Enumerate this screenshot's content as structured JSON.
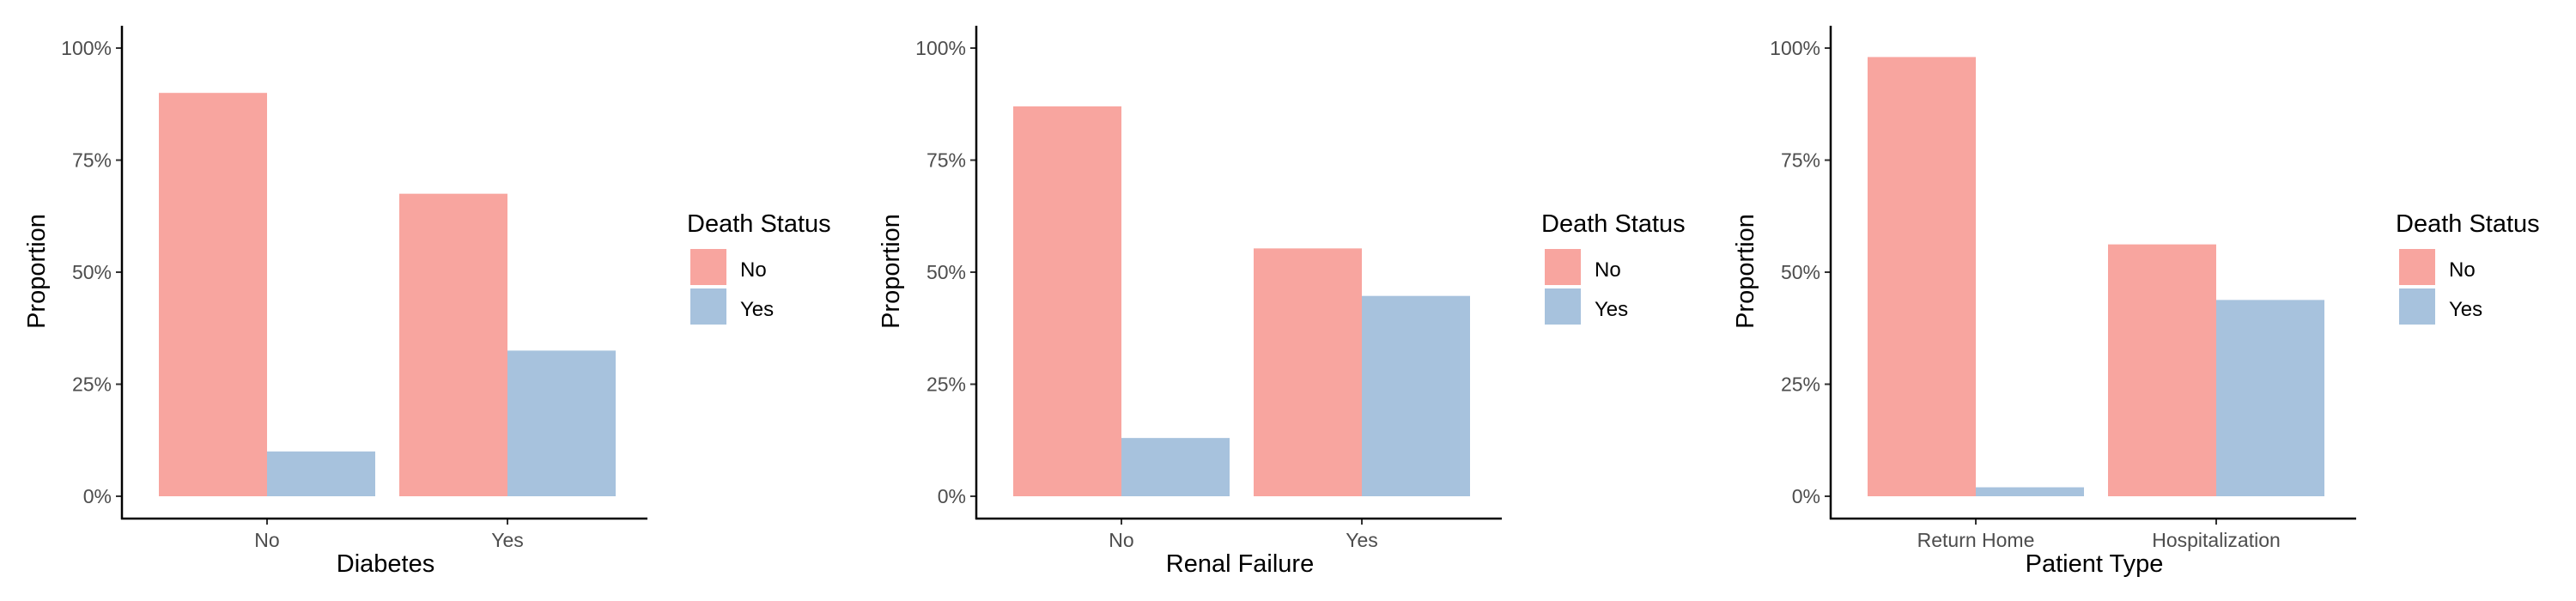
{
  "colors": {
    "no": "#F8A59F",
    "yes": "#A7C2DD",
    "axis": "#000000",
    "tick_text": "#4D4D4D"
  },
  "chart_data": [
    {
      "type": "bar",
      "xlabel": "Diabetes",
      "ylabel": "Proportion",
      "categories": [
        "No",
        "Yes"
      ],
      "ylim": [
        0,
        1
      ],
      "yticks": [
        0,
        0.25,
        0.5,
        0.75,
        1
      ],
      "ytick_labels": [
        "0%",
        "25%",
        "50%",
        "75%",
        "100%"
      ],
      "grid": false,
      "legend": {
        "title": "Death Status",
        "position": "right",
        "entries": [
          "No",
          "Yes"
        ]
      },
      "series": [
        {
          "name": "No",
          "color": "#F8A59F",
          "values": [
            0.9,
            0.675
          ]
        },
        {
          "name": "Yes",
          "color": "#A7C2DD",
          "values": [
            0.1,
            0.325
          ]
        }
      ]
    },
    {
      "type": "bar",
      "xlabel": "Renal Failure",
      "ylabel": "Proportion",
      "categories": [
        "No",
        "Yes"
      ],
      "ylim": [
        0,
        1
      ],
      "yticks": [
        0,
        0.25,
        0.5,
        0.75,
        1
      ],
      "ytick_labels": [
        "0%",
        "25%",
        "50%",
        "75%",
        "100%"
      ],
      "grid": false,
      "legend": {
        "title": "Death Status",
        "position": "right",
        "entries": [
          "No",
          "Yes"
        ]
      },
      "series": [
        {
          "name": "No",
          "color": "#F8A59F",
          "values": [
            0.87,
            0.553
          ]
        },
        {
          "name": "Yes",
          "color": "#A7C2DD",
          "values": [
            0.13,
            0.447
          ]
        }
      ]
    },
    {
      "type": "bar",
      "xlabel": "Patient Type",
      "ylabel": "Proportion",
      "categories": [
        "Return Home",
        "Hospitalization"
      ],
      "ylim": [
        0,
        1
      ],
      "yticks": [
        0,
        0.25,
        0.5,
        0.75,
        1
      ],
      "ytick_labels": [
        "0%",
        "25%",
        "50%",
        "75%",
        "100%"
      ],
      "grid": false,
      "legend": {
        "title": "Death Status",
        "position": "right",
        "entries": [
          "No",
          "Yes"
        ]
      },
      "series": [
        {
          "name": "No",
          "color": "#F8A59F",
          "values": [
            0.98,
            0.562
          ]
        },
        {
          "name": "Yes",
          "color": "#A7C2DD",
          "values": [
            0.02,
            0.438
          ]
        }
      ]
    }
  ]
}
